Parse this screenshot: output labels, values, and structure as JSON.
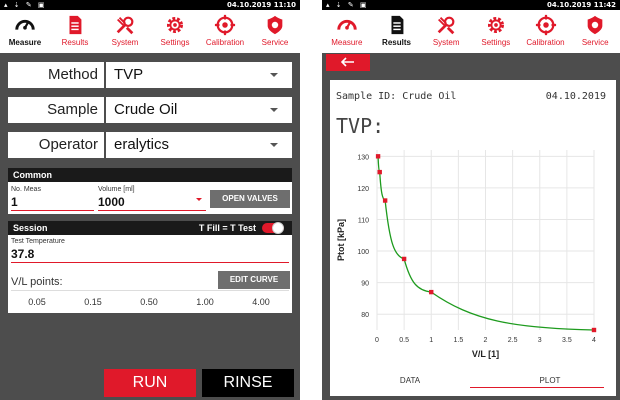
{
  "left": {
    "status": {
      "icons": "▴ ⇣ ✎ ▣",
      "clock": "04.10.2019 11:10"
    },
    "nav": [
      {
        "icon": "gauge-icon",
        "label": "Measure"
      },
      {
        "icon": "document-icon",
        "label": "Results"
      },
      {
        "icon": "tools-icon",
        "label": "System"
      },
      {
        "icon": "gear-icon",
        "label": "Settings"
      },
      {
        "icon": "crosshair-icon",
        "label": "Calibration"
      },
      {
        "icon": "shield-icon",
        "label": "Service"
      }
    ],
    "method": {
      "label": "Method",
      "value": "TVP"
    },
    "sample": {
      "label": "Sample",
      "value": "Crude Oil"
    },
    "operator": {
      "label": "Operator",
      "value": "eralytics"
    },
    "common": {
      "title": "Common",
      "no_meas_label": "No. Meas",
      "no_meas_value": "1",
      "volume_label": "Volume [ml]",
      "volume_value": "1000",
      "open_valves": "OPEN VALVES"
    },
    "session": {
      "title": "Session",
      "tfill_label": "T Fill = T Test",
      "tfill_on": true,
      "test_temp_label": "Test Temperature",
      "test_temp_value": "37.8",
      "vl_label": "V/L points:",
      "edit_curve": "EDIT CURVE",
      "vl_values": [
        "0.05",
        "0.15",
        "0.50",
        "1.00",
        "4.00"
      ]
    },
    "run": "RUN",
    "rinse": "RINSE"
  },
  "right": {
    "status": {
      "icons": "▴ ⇣ ✎ ▣",
      "clock": "04.10.2019 11:42"
    },
    "nav": [
      {
        "icon": "gauge-icon",
        "label": "Measure"
      },
      {
        "icon": "document-icon",
        "label": "Results"
      },
      {
        "icon": "tools-icon",
        "label": "System"
      },
      {
        "icon": "gear-icon",
        "label": "Settings"
      },
      {
        "icon": "crosshair-icon",
        "label": "Calibration"
      },
      {
        "icon": "shield-icon",
        "label": "Service"
      }
    ],
    "back_icon": "arrow-left-icon",
    "sample_id": "Sample ID: Crude Oil",
    "date": "04.10.2019",
    "title": "TVP:",
    "tabs": [
      "DATA",
      "PLOT"
    ],
    "active_tab": "PLOT"
  },
  "chart_data": {
    "type": "line",
    "title": "",
    "xlabel": "V/L [1]",
    "ylabel": "Ptot [kPa]",
    "xlim": [
      0,
      4
    ],
    "ylim": [
      75,
      130
    ],
    "xticks": [
      "0",
      "0.5",
      "1",
      "1.5",
      "2",
      "2.5",
      "3",
      "3.5",
      "4"
    ],
    "yticks": [
      "80",
      "90",
      "100",
      "110",
      "120",
      "130"
    ],
    "grid": true,
    "series": [
      {
        "x": [
          0.02,
          0.05,
          0.15,
          0.5,
          1.0,
          4.0
        ],
        "values": [
          130,
          125,
          116,
          97.5,
          87,
          75
        ],
        "marker_color": "#e0192a",
        "line_color": "#1e9b1e"
      }
    ]
  },
  "colors": {
    "accent": "#e0192a",
    "curve": "#1e9b1e",
    "background": "#4d4d4d"
  }
}
